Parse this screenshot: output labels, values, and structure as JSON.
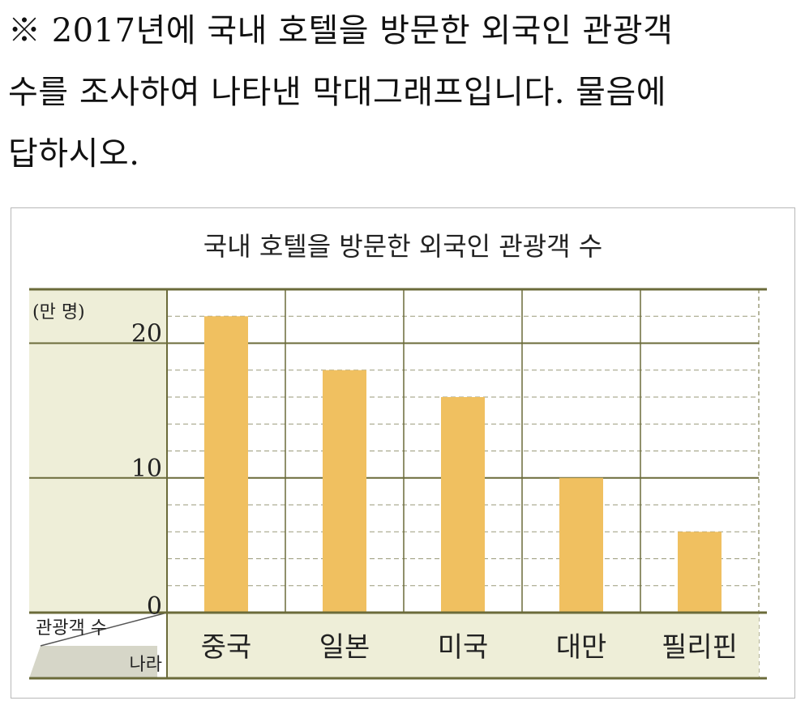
{
  "question": {
    "lines": [
      "※ 2017년에 국내 호텔을 방문한 외국인 관광객",
      "수를 조사하여 나타낸 막대그래프입니다. 물음에",
      "답하시오."
    ]
  },
  "colors": {
    "bar": "#f0c060",
    "axis_panel": "#eeeed8",
    "axis_line": "#6b6b3a",
    "dashed_grid": "#9a9a7a",
    "corner_cell": "#d6d6c8"
  },
  "chart_data": {
    "type": "bar",
    "title": "국내 호텔을 방문한 외국인 관광객 수",
    "unit_label": "(만 명)",
    "categories": [
      "중국",
      "일본",
      "미국",
      "대만",
      "필리핀"
    ],
    "values": [
      22,
      18,
      16,
      10,
      6
    ],
    "ylim": [
      0,
      24
    ],
    "yticks": [
      "0",
      "10",
      "20"
    ],
    "ytick_values": [
      0,
      10,
      20
    ],
    "minor_step": 2,
    "corner_header": {
      "value_label": "관광객 수",
      "category_label": "나라"
    },
    "grid": true,
    "legend": "none"
  }
}
